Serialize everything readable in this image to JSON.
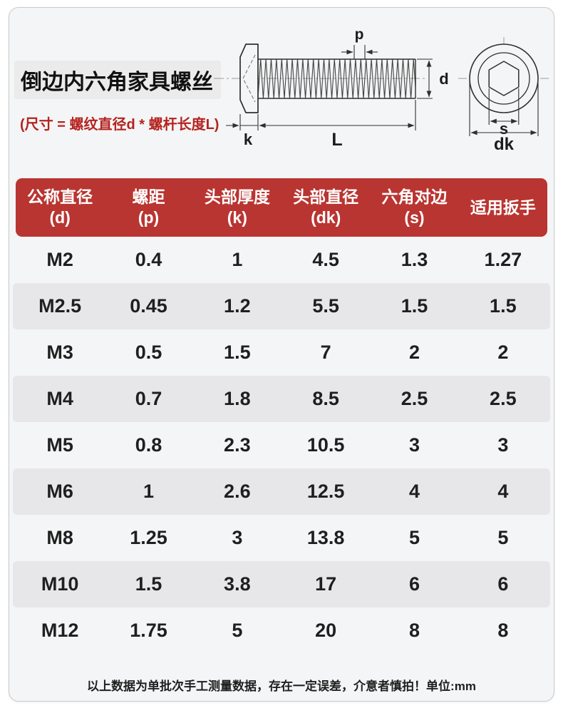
{
  "colors": {
    "accent_red": "#b93531",
    "subtitle_red": "#b5231f",
    "card_bg": "#f4f5f6",
    "stripe": "#e7e7e9",
    "line": "#2f2f2f"
  },
  "header_block": {
    "title": "倒边内六角家具螺丝",
    "subtitle": "(尺寸 = 螺纹直径d * 螺杆长度L)"
  },
  "diagram": {
    "side_labels": {
      "p": "p",
      "d": "d",
      "k": "k",
      "L": "L"
    },
    "end_labels": {
      "s": "s",
      "dk": "dk"
    }
  },
  "table": {
    "columns": [
      {
        "title": "公称直径",
        "sub": "(d)"
      },
      {
        "title": "螺距",
        "sub": "(p)"
      },
      {
        "title": "头部厚度",
        "sub": "(k)"
      },
      {
        "title": "头部直径",
        "sub": "(dk)"
      },
      {
        "title": "六角对边",
        "sub": "(s)"
      },
      {
        "title": "适用扳手",
        "sub": ""
      }
    ],
    "rows": [
      [
        "M2",
        "0.4",
        "1",
        "4.5",
        "1.3",
        "1.27"
      ],
      [
        "M2.5",
        "0.45",
        "1.2",
        "5.5",
        "1.5",
        "1.5"
      ],
      [
        "M3",
        "0.5",
        "1.5",
        "7",
        "2",
        "2"
      ],
      [
        "M4",
        "0.7",
        "1.8",
        "8.5",
        "2.5",
        "2.5"
      ],
      [
        "M5",
        "0.8",
        "2.3",
        "10.5",
        "3",
        "3"
      ],
      [
        "M6",
        "1",
        "2.6",
        "12.5",
        "4",
        "4"
      ],
      [
        "M8",
        "1.25",
        "3",
        "13.8",
        "5",
        "5"
      ],
      [
        "M10",
        "1.5",
        "3.8",
        "17",
        "6",
        "6"
      ],
      [
        "M12",
        "1.75",
        "5",
        "20",
        "8",
        "8"
      ]
    ]
  },
  "footer": {
    "note": "以上数据为单批次手工测量数据，存在一定误差，介意者慎拍！单位:mm"
  }
}
